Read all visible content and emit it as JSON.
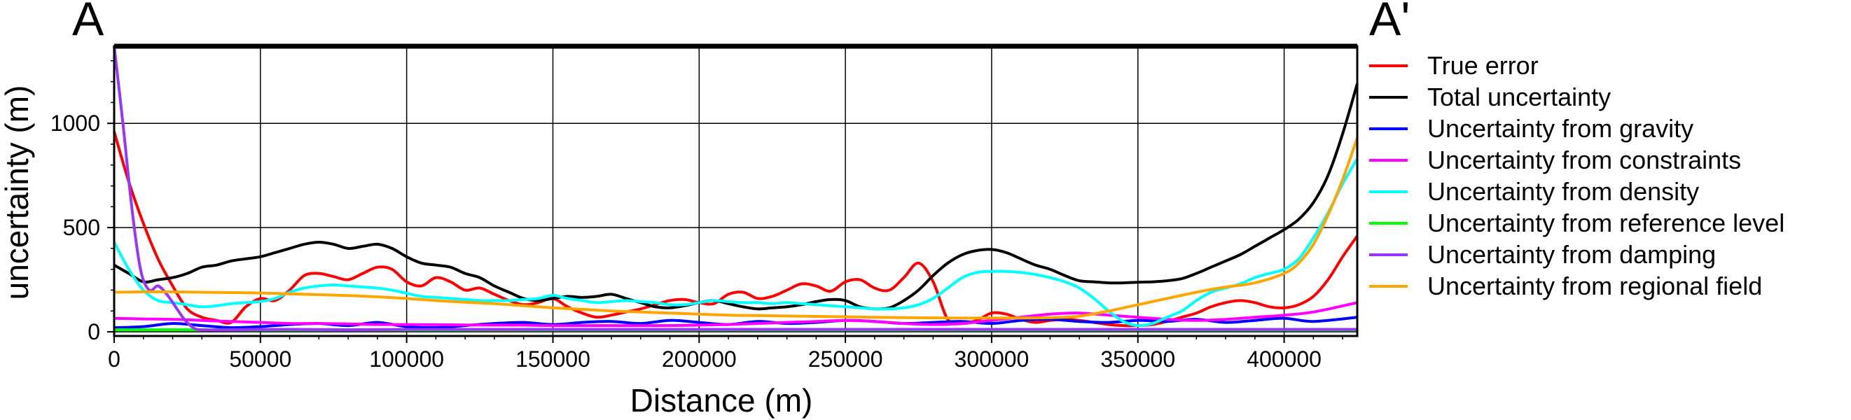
{
  "profile": {
    "start_label": "A",
    "end_label": "A'"
  },
  "chart_data": {
    "type": "line",
    "title": "",
    "xlabel": "Distance (m)",
    "ylabel": "uncertainty (m)",
    "xlim": [
      0,
      425000
    ],
    "ylim": [
      -20,
      1370
    ],
    "x_ticks": [
      0,
      50000,
      100000,
      150000,
      200000,
      250000,
      300000,
      350000,
      400000
    ],
    "x_tick_labels": [
      "0",
      "50000",
      "100000",
      "150000",
      "200000",
      "250000",
      "300000",
      "350000",
      "400000"
    ],
    "y_ticks": [
      0,
      500,
      1000
    ],
    "y_tick_labels": [
      "0",
      "500",
      "1000"
    ],
    "grid": true,
    "legend_position": "right",
    "series": [
      {
        "name": "True error",
        "color": "#ff0000",
        "x": [
          0,
          5000,
          10000,
          15000,
          20000,
          25000,
          30000,
          35000,
          40000,
          45000,
          50000,
          55000,
          60000,
          65000,
          70000,
          75000,
          80000,
          85000,
          90000,
          95000,
          100000,
          105000,
          110000,
          115000,
          120000,
          125000,
          130000,
          135000,
          140000,
          145000,
          150000,
          155000,
          160000,
          165000,
          170000,
          175000,
          180000,
          185000,
          190000,
          195000,
          200000,
          205000,
          210000,
          215000,
          220000,
          225000,
          230000,
          235000,
          240000,
          245000,
          250000,
          255000,
          260000,
          265000,
          270000,
          275000,
          280000,
          285000,
          290000,
          295000,
          300000,
          305000,
          310000,
          315000,
          320000,
          325000,
          330000,
          335000,
          340000,
          345000,
          350000,
          355000,
          360000,
          365000,
          370000,
          375000,
          380000,
          385000,
          390000,
          395000,
          400000,
          405000,
          410000,
          415000,
          420000,
          425000
        ],
        "y": [
          960,
          720,
          520,
          350,
          220,
          110,
          70,
          55,
          45,
          120,
          160,
          150,
          200,
          270,
          280,
          265,
          250,
          280,
          310,
          300,
          240,
          220,
          260,
          240,
          200,
          210,
          180,
          150,
          130,
          140,
          160,
          120,
          90,
          70,
          80,
          95,
          110,
          130,
          150,
          155,
          140,
          135,
          180,
          190,
          160,
          170,
          200,
          230,
          220,
          195,
          240,
          250,
          210,
          200,
          260,
          330,
          240,
          60,
          40,
          55,
          90,
          85,
          60,
          45,
          55,
          60,
          55,
          45,
          35,
          30,
          30,
          35,
          50,
          70,
          90,
          120,
          140,
          150,
          140,
          120,
          115,
          130,
          170,
          250,
          360,
          460
        ]
      },
      {
        "name": "Total uncertainty",
        "color": "#000000",
        "x": [
          0,
          5000,
          10000,
          15000,
          20000,
          25000,
          30000,
          35000,
          40000,
          45000,
          50000,
          55000,
          60000,
          65000,
          70000,
          75000,
          80000,
          85000,
          90000,
          95000,
          100000,
          105000,
          110000,
          115000,
          120000,
          125000,
          130000,
          135000,
          140000,
          145000,
          150000,
          155000,
          160000,
          165000,
          170000,
          175000,
          180000,
          185000,
          190000,
          195000,
          200000,
          205000,
          210000,
          215000,
          220000,
          225000,
          230000,
          235000,
          240000,
          245000,
          250000,
          255000,
          260000,
          265000,
          270000,
          275000,
          280000,
          285000,
          290000,
          295000,
          300000,
          305000,
          310000,
          315000,
          320000,
          325000,
          330000,
          335000,
          340000,
          345000,
          350000,
          355000,
          360000,
          365000,
          370000,
          375000,
          380000,
          385000,
          390000,
          395000,
          400000,
          405000,
          410000,
          415000,
          420000,
          425000
        ],
        "y": [
          320,
          280,
          240,
          250,
          260,
          280,
          310,
          320,
          340,
          350,
          360,
          380,
          400,
          420,
          430,
          420,
          400,
          410,
          420,
          400,
          360,
          330,
          320,
          310,
          280,
          260,
          220,
          190,
          160,
          150,
          160,
          170,
          165,
          170,
          180,
          160,
          140,
          120,
          115,
          125,
          140,
          150,
          135,
          120,
          110,
          115,
          120,
          130,
          145,
          155,
          150,
          120,
          110,
          115,
          150,
          200,
          270,
          330,
          370,
          390,
          395,
          380,
          350,
          320,
          300,
          270,
          245,
          240,
          235,
          235,
          238,
          240,
          245,
          255,
          280,
          310,
          340,
          370,
          410,
          450,
          490,
          540,
          620,
          750,
          950,
          1190
        ]
      },
      {
        "name": "Uncertainty from gravity",
        "color": "#0000ff",
        "x": [
          0,
          10000,
          20000,
          30000,
          40000,
          50000,
          60000,
          70000,
          80000,
          90000,
          100000,
          110000,
          120000,
          130000,
          140000,
          150000,
          160000,
          170000,
          180000,
          190000,
          200000,
          210000,
          220000,
          230000,
          240000,
          250000,
          260000,
          270000,
          280000,
          290000,
          300000,
          310000,
          320000,
          330000,
          340000,
          350000,
          360000,
          370000,
          380000,
          390000,
          400000,
          410000,
          425000
        ],
        "y": [
          20,
          25,
          40,
          30,
          20,
          25,
          35,
          40,
          30,
          45,
          25,
          20,
          30,
          40,
          45,
          35,
          45,
          50,
          40,
          55,
          45,
          35,
          50,
          40,
          45,
          55,
          50,
          40,
          45,
          50,
          40,
          55,
          60,
          50,
          45,
          55,
          50,
          60,
          45,
          55,
          65,
          50,
          70
        ]
      },
      {
        "name": "Uncertainty from constraints",
        "color": "#ff00ff",
        "x": [
          0,
          10000,
          20000,
          30000,
          40000,
          50000,
          60000,
          70000,
          80000,
          90000,
          100000,
          110000,
          120000,
          130000,
          140000,
          150000,
          160000,
          170000,
          180000,
          190000,
          200000,
          210000,
          220000,
          230000,
          240000,
          250000,
          260000,
          270000,
          280000,
          290000,
          300000,
          310000,
          320000,
          330000,
          340000,
          350000,
          360000,
          370000,
          380000,
          390000,
          400000,
          410000,
          425000
        ],
        "y": [
          65,
          62,
          60,
          55,
          50,
          45,
          40,
          40,
          38,
          35,
          35,
          34,
          33,
          32,
          32,
          30,
          30,
          30,
          30,
          30,
          32,
          35,
          40,
          45,
          50,
          55,
          50,
          40,
          35,
          40,
          55,
          70,
          85,
          90,
          80,
          70,
          60,
          55,
          60,
          70,
          80,
          95,
          140
        ]
      },
      {
        "name": "Uncertainty from density",
        "color": "#00ffff",
        "x": [
          0,
          5000,
          10000,
          15000,
          20000,
          25000,
          30000,
          35000,
          40000,
          45000,
          50000,
          55000,
          60000,
          65000,
          70000,
          75000,
          80000,
          85000,
          90000,
          95000,
          100000,
          105000,
          110000,
          115000,
          120000,
          125000,
          130000,
          135000,
          140000,
          145000,
          150000,
          155000,
          160000,
          165000,
          170000,
          175000,
          180000,
          185000,
          190000,
          195000,
          200000,
          205000,
          210000,
          215000,
          220000,
          225000,
          230000,
          235000,
          240000,
          245000,
          250000,
          255000,
          260000,
          265000,
          270000,
          275000,
          280000,
          285000,
          290000,
          295000,
          300000,
          305000,
          310000,
          315000,
          320000,
          325000,
          330000,
          335000,
          340000,
          345000,
          350000,
          355000,
          360000,
          365000,
          370000,
          375000,
          380000,
          385000,
          390000,
          395000,
          400000,
          405000,
          410000,
          415000,
          420000,
          425000
        ],
        "y": [
          430,
          300,
          200,
          150,
          140,
          130,
          120,
          125,
          135,
          140,
          145,
          160,
          190,
          210,
          220,
          225,
          220,
          215,
          210,
          200,
          185,
          170,
          165,
          160,
          155,
          150,
          150,
          150,
          155,
          160,
          175,
          160,
          150,
          140,
          145,
          150,
          145,
          140,
          130,
          130,
          140,
          150,
          145,
          140,
          140,
          135,
          140,
          135,
          130,
          125,
          120,
          115,
          110,
          110,
          115,
          130,
          160,
          210,
          260,
          285,
          290,
          290,
          285,
          275,
          260,
          240,
          210,
          160,
          100,
          50,
          30,
          40,
          70,
          100,
          150,
          190,
          210,
          230,
          260,
          280,
          300,
          350,
          450,
          570,
          710,
          830
        ]
      },
      {
        "name": "Uncertainty from reference level",
        "color": "#00ff00",
        "x": [
          0,
          50000,
          100000,
          150000,
          200000,
          250000,
          300000,
          350000,
          400000,
          425000
        ],
        "y": [
          10,
          10,
          10,
          10,
          10,
          10,
          10,
          10,
          10,
          10
        ]
      },
      {
        "name": "Uncertainty from damping",
        "color": "#9933ff",
        "x": [
          0,
          3000,
          6000,
          9000,
          12000,
          15000,
          18000,
          21000,
          24000,
          27000,
          30000,
          40000,
          60000,
          80000,
          100000,
          150000,
          200000,
          250000,
          300000,
          350000,
          400000,
          425000
        ],
        "y": [
          1370,
          1000,
          600,
          300,
          200,
          220,
          180,
          120,
          60,
          20,
          10,
          10,
          12,
          10,
          12,
          12,
          12,
          12,
          12,
          12,
          12,
          12
        ]
      },
      {
        "name": "Uncertainty from regional field",
        "color": "#ffa500",
        "x": [
          0,
          10000,
          20000,
          30000,
          40000,
          50000,
          60000,
          70000,
          80000,
          90000,
          100000,
          110000,
          120000,
          130000,
          140000,
          150000,
          160000,
          170000,
          180000,
          190000,
          200000,
          210000,
          220000,
          230000,
          240000,
          250000,
          260000,
          270000,
          280000,
          290000,
          300000,
          310000,
          320000,
          330000,
          340000,
          350000,
          360000,
          370000,
          380000,
          390000,
          400000,
          405000,
          410000,
          415000,
          420000,
          425000
        ],
        "y": [
          190,
          192,
          192,
          190,
          188,
          186,
          182,
          178,
          174,
          168,
          160,
          150,
          142,
          135,
          125,
          115,
          108,
          100,
          95,
          90,
          85,
          80,
          78,
          76,
          74,
          72,
          70,
          68,
          67,
          66,
          66,
          66,
          68,
          75,
          100,
          130,
          160,
          190,
          215,
          235,
          280,
          330,
          420,
          560,
          730,
          930
        ]
      }
    ]
  }
}
